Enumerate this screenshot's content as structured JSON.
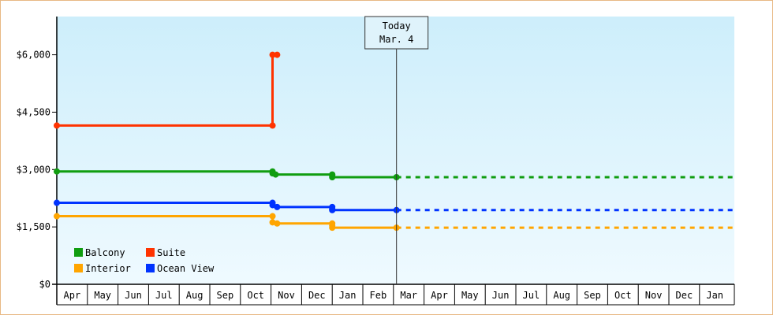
{
  "chart_data": {
    "type": "line",
    "title": "",
    "xlabel": "",
    "ylabel": "",
    "ylim": [
      0,
      7000
    ],
    "yticks": [
      {
        "value": 0,
        "label": "$0"
      },
      {
        "value": 1500,
        "label": "$1,500"
      },
      {
        "value": 3000,
        "label": "$3,000"
      },
      {
        "value": 4500,
        "label": "$4,500"
      },
      {
        "value": 6000,
        "label": "$6,000"
      }
    ],
    "months": [
      "Apr",
      "May",
      "Jun",
      "Jul",
      "Aug",
      "Sep",
      "Oct",
      "Nov",
      "Dec",
      "Jan",
      "Feb",
      "Mar",
      "Apr",
      "May",
      "Jun",
      "Jul",
      "Aug",
      "Sep",
      "Oct",
      "Nov",
      "Dec",
      "Jan"
    ],
    "today": {
      "line1": "Today",
      "line2": "Mar. 4",
      "x": 11.1
    },
    "grid": false,
    "legend_position": "bottom-left",
    "series": [
      {
        "name": "Suite",
        "color": "#ff3300",
        "points": [
          [
            0,
            4150
          ],
          [
            7.05,
            4150
          ],
          [
            7.05,
            6000
          ],
          [
            7.2,
            6000
          ]
        ],
        "projection": null
      },
      {
        "name": "Balcony",
        "color": "#109d10",
        "points": [
          [
            0,
            2950
          ],
          [
            7.05,
            2950
          ],
          [
            7.05,
            2900
          ],
          [
            7.15,
            2870
          ],
          [
            9,
            2870
          ],
          [
            9,
            2850
          ],
          [
            9,
            2800
          ],
          [
            11.1,
            2800
          ]
        ],
        "projection": [
          11.1,
          22.5,
          2800
        ]
      },
      {
        "name": "Ocean View",
        "color": "#0033ff",
        "points": [
          [
            0,
            2130
          ],
          [
            7.05,
            2130
          ],
          [
            7.05,
            2070
          ],
          [
            7.2,
            2020
          ],
          [
            9,
            2020
          ],
          [
            9,
            1960
          ],
          [
            9,
            1940
          ],
          [
            11.1,
            1940
          ]
        ],
        "projection": [
          11.1,
          22.5,
          1940
        ]
      },
      {
        "name": "Interior",
        "color": "#ffa500",
        "points": [
          [
            0,
            1780
          ],
          [
            7.05,
            1780
          ],
          [
            7.05,
            1620
          ],
          [
            7.2,
            1590
          ],
          [
            9,
            1590
          ],
          [
            9,
            1530
          ],
          [
            9,
            1480
          ],
          [
            11.1,
            1480
          ]
        ],
        "projection": [
          11.1,
          22.5,
          1480
        ]
      }
    ],
    "legend": [
      {
        "label": "Balcony",
        "color": "#109d10"
      },
      {
        "label": "Suite",
        "color": "#ff3300"
      },
      {
        "label": "Interior",
        "color": "#ffa500"
      },
      {
        "label": "Ocean View",
        "color": "#0033ff"
      }
    ]
  }
}
